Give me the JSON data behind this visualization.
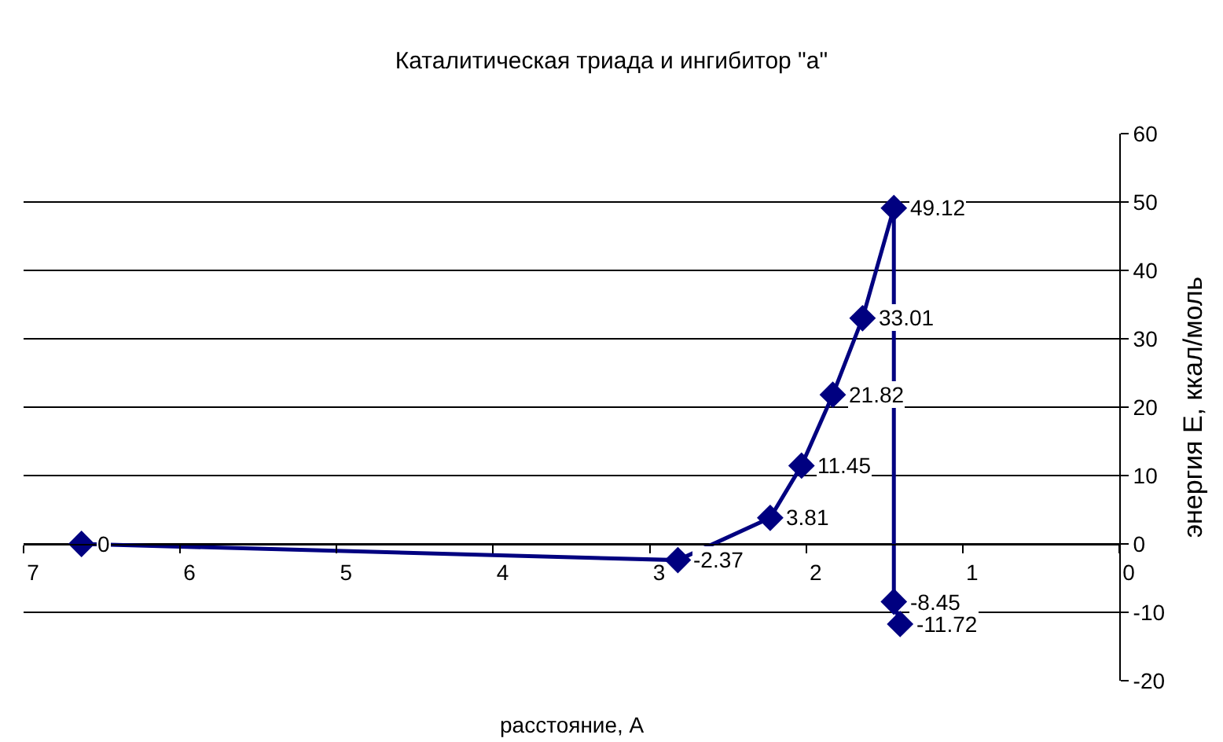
{
  "chart_data": {
    "type": "line",
    "title": "Каталитическая триада и ингибитор \"a\"",
    "xlabel": "расстояние, А",
    "ylabel": "энергия Е, ккал/моль",
    "x": [
      6.63,
      2.82,
      2.23,
      2.03,
      1.83,
      1.64,
      1.44,
      1.44,
      1.4
    ],
    "series": [
      {
        "color": "#000080",
        "values": [
          0,
          -2.37,
          3.81,
          11.45,
          21.82,
          33.01,
          49.12,
          -8.45,
          -11.72
        ]
      }
    ],
    "data_labels": true,
    "marker": "diamond",
    "grid": "y",
    "legend": false,
    "xlim": [
      7,
      0
    ],
    "xticks": [
      7,
      6,
      5,
      4,
      3,
      2,
      1,
      0
    ],
    "ylim": [
      -20,
      60
    ],
    "yticks": [
      -20,
      -10,
      0,
      10,
      20,
      30,
      40,
      50,
      60
    ]
  }
}
